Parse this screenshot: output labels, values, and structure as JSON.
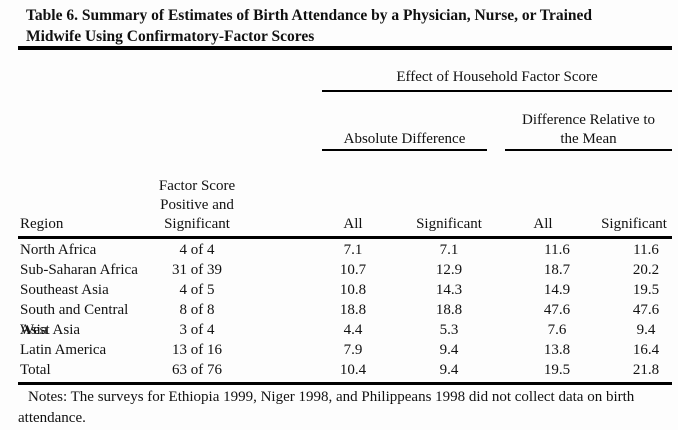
{
  "title": {
    "line1": "Table 6. Summary of Estimates of Birth Attendance by a Physician, Nurse, or Trained",
    "line2": "Midwife Using Confirmatory-Factor Scores"
  },
  "table": {
    "spanner": "Effect of Household Factor Score",
    "sub_absolute": "Absolute Difference",
    "sub_relative": "Difference Relative to\nthe Mean",
    "columns": [
      "Region",
      "Factor Score\nPositive and\nSignificant",
      "All",
      "Significant",
      "All",
      "Significant"
    ],
    "rows": [
      [
        "North Africa",
        "4 of 4",
        "7.1",
        "7.1",
        "11.6",
        "11.6"
      ],
      [
        "Sub-Saharan Africa",
        "31 of 39",
        "10.7",
        "12.9",
        "18.7",
        "20.2"
      ],
      [
        "Southeast Asia",
        "4 of 5",
        "10.8",
        "14.3",
        "14.9",
        "19.5"
      ],
      [
        "South and Central Asia",
        "8 of 8",
        "18.8",
        "18.8",
        "47.6",
        "47.6"
      ],
      [
        "West Asia",
        "3 of 4",
        "4.4",
        "5.3",
        "7.6",
        "9.4"
      ],
      [
        "Latin America",
        "13 of 16",
        "7.9",
        "9.4",
        "13.8",
        "16.4"
      ],
      [
        "Total",
        "63 of 76",
        "10.4",
        "9.4",
        "19.5",
        "21.8"
      ]
    ]
  },
  "notes": "Notes: The surveys for Ethiopia 1999, Niger 1998, and Philippeans 1998 did not collect data on birth attendance.",
  "colors": {
    "text": "#111111",
    "rule": "#000000",
    "background": "#fdfdfd"
  },
  "chart_data": {
    "type": "table",
    "title": "Table 6. Summary of Estimates of Birth Attendance by a Physician, Nurse, or Trained Midwife Using Confirmatory-Factor Scores",
    "column_groups": [
      "Effect of Household Factor Score: Absolute Difference",
      "Effect of Household Factor Score: Difference Relative to the Mean"
    ],
    "categories": [
      "North Africa",
      "Sub-Saharan Africa",
      "Southeast Asia",
      "South and Central Asia",
      "West Asia",
      "Latin America",
      "Total"
    ],
    "series": [
      {
        "name": "Factor Score Positive and Significant",
        "values": [
          "4 of 4",
          "31 of 39",
          "4 of 5",
          "8 of 8",
          "3 of 4",
          "13 of 16",
          "63 of 76"
        ]
      },
      {
        "name": "Absolute Difference - All",
        "values": [
          7.1,
          10.7,
          10.8,
          18.8,
          4.4,
          7.9,
          10.4
        ]
      },
      {
        "name": "Absolute Difference - Significant",
        "values": [
          7.1,
          12.9,
          14.3,
          18.8,
          5.3,
          9.4,
          9.4
        ]
      },
      {
        "name": "Difference Relative to the Mean - All",
        "values": [
          11.6,
          18.7,
          14.9,
          47.6,
          7.6,
          13.8,
          19.5
        ]
      },
      {
        "name": "Difference Relative to the Mean - Significant",
        "values": [
          11.6,
          20.2,
          19.5,
          47.6,
          9.4,
          16.4,
          21.8
        ]
      }
    ]
  }
}
